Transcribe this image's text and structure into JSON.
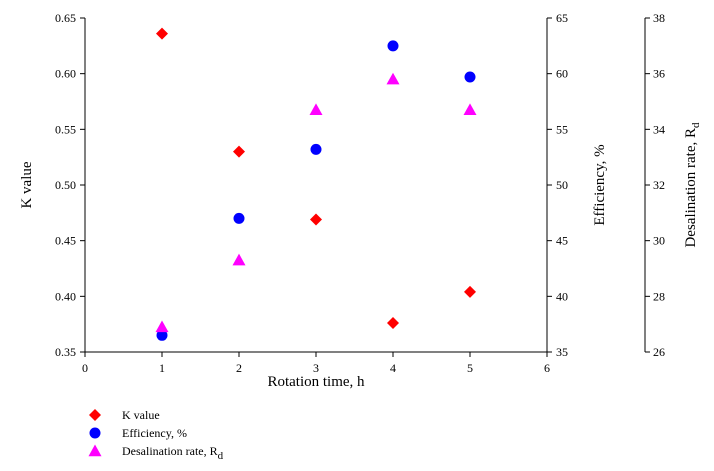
{
  "chart_data": {
    "type": "scatter",
    "x_axis": {
      "label": "Rotation time, h",
      "range": [
        0,
        6
      ],
      "ticks": [
        "0",
        "1",
        "2",
        "3",
        "4",
        "5",
        "6"
      ]
    },
    "y_axes": [
      {
        "id": "left",
        "label": "K value",
        "range": [
          0.35,
          0.65
        ],
        "ticks": [
          "0.35",
          "0.40",
          "0.45",
          "0.50",
          "0.55",
          "0.60",
          "0.65"
        ]
      },
      {
        "id": "right1",
        "label": "Efficiency, %",
        "range": [
          35,
          65
        ],
        "ticks": [
          "35",
          "40",
          "45",
          "50",
          "55",
          "60",
          "65"
        ]
      },
      {
        "id": "right2",
        "label_main": "Desalination rate, R",
        "label_sub": "d",
        "range": [
          26,
          38
        ],
        "ticks": [
          "26",
          "28",
          "30",
          "32",
          "34",
          "36",
          "38"
        ]
      }
    ],
    "series": [
      {
        "name": "K value",
        "axis": "left",
        "marker": "diamond",
        "color": "#ff0000",
        "x": [
          1,
          2,
          3,
          4,
          5
        ],
        "y": [
          0.636,
          0.53,
          0.469,
          0.376,
          0.404
        ]
      },
      {
        "name": "Efficiency, %",
        "axis": "right1",
        "marker": "circle",
        "color": "#0000ff",
        "x": [
          1,
          2,
          3,
          4,
          5
        ],
        "y": [
          36.5,
          47.0,
          53.2,
          62.5,
          59.7
        ]
      },
      {
        "name_main": "Desalination rate, R",
        "name_sub": "d",
        "axis": "right2",
        "marker": "triangle",
        "color": "#ff00ff",
        "x": [
          1,
          2,
          3,
          4,
          5
        ],
        "y": [
          26.9,
          29.3,
          34.7,
          35.8,
          34.7
        ]
      }
    ],
    "legend_position": "bottom-left",
    "grid": false
  }
}
